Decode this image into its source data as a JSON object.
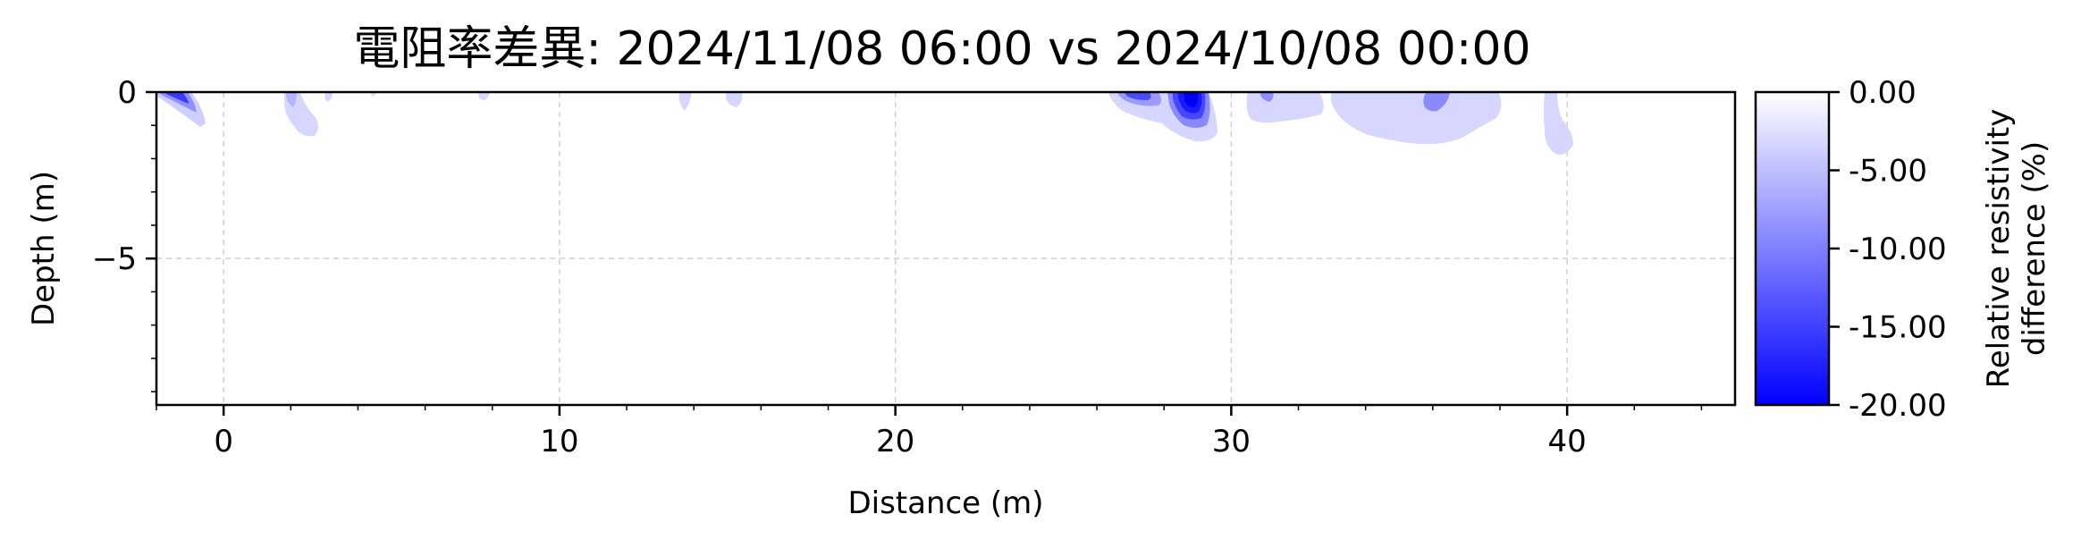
{
  "chart_data": {
    "type": "heatmap",
    "title": "電阻率差異: 2024/11/08 06:00 vs 2024/10/08 00:00",
    "xlabel": "Distance (m)",
    "ylabel": "Depth (m)",
    "xlim": [
      -2,
      45
    ],
    "ylim": [
      -9.4,
      0
    ],
    "xticks": [
      0,
      10,
      20,
      30,
      40
    ],
    "yticks": [
      0,
      -5
    ],
    "grid": true,
    "colorbar": {
      "label_line1": "Relative resistivity",
      "label_line2": "difference (%)",
      "range": [
        -20,
        0
      ],
      "ticks": [
        "0.00",
        "-5.00",
        "-10.00",
        "-15.00",
        "-20.00"
      ],
      "tick_values": [
        0,
        -5,
        -10,
        -15,
        -20
      ],
      "color_min": "#0000ff",
      "color_max": "#ffffff"
    },
    "anomalies": [
      {
        "x_min": -1.9,
        "x_max": -0.6,
        "depth_max": 1.0,
        "min_value": -16
      },
      {
        "x_min": 1.8,
        "x_max": 2.9,
        "depth_max": 1.3,
        "min_value": -5
      },
      {
        "x_min": 13.8,
        "x_max": 15.6,
        "depth_max": 0.5,
        "min_value": -4
      },
      {
        "x_min": 26.7,
        "x_max": 28.3,
        "depth_max": 0.9,
        "min_value": -13
      },
      {
        "x_min": 28.3,
        "x_max": 29.8,
        "depth_max": 1.4,
        "min_value": -20
      },
      {
        "x_min": 30.6,
        "x_max": 32.6,
        "depth_max": 0.9,
        "min_value": -6
      },
      {
        "x_min": 33.0,
        "x_max": 37.5,
        "depth_max": 1.6,
        "min_value": -8
      },
      {
        "x_min": 39.5,
        "x_max": 40.3,
        "depth_max": 1.8,
        "min_value": -4
      }
    ]
  }
}
